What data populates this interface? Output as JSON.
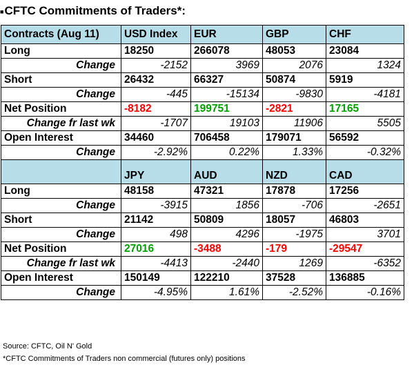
{
  "title": "CFTC Commitments of Traders*:",
  "title_mark": "■",
  "top": {
    "header_label": "Contracts (Aug 11)",
    "currencies": [
      "USD Index",
      "EUR",
      "GBP",
      "CHF"
    ],
    "rows": [
      {
        "label": "Long",
        "kind": "main",
        "values": [
          "18250",
          "266078",
          "48053",
          "23084"
        ]
      },
      {
        "label": "Change",
        "kind": "sub",
        "values": [
          "-2152",
          "3969",
          "2076",
          "1324"
        ]
      },
      {
        "label": "Short",
        "kind": "main",
        "values": [
          "26432",
          "66327",
          "50874",
          "5919"
        ]
      },
      {
        "label": "Change",
        "kind": "sub",
        "values": [
          "-445",
          "-15134",
          "-9830",
          "-4181"
        ]
      },
      {
        "label": "Net Position",
        "kind": "net",
        "values": [
          "-8182",
          "199751",
          "-2821",
          "17165"
        ]
      },
      {
        "label": "Change fr last wk",
        "kind": "sub",
        "values": [
          "-1707",
          "19103",
          "11906",
          "5505"
        ]
      },
      {
        "label": "Open Interest",
        "kind": "main",
        "values": [
          "34460",
          "706458",
          "179071",
          "56592"
        ]
      },
      {
        "label": "Change",
        "kind": "sub",
        "values": [
          "-2.92%",
          "0.22%",
          "1.33%",
          "-0.32%"
        ]
      }
    ]
  },
  "bottom": {
    "header_label": "",
    "currencies": [
      "JPY",
      "AUD",
      "NZD",
      "CAD"
    ],
    "rows": [
      {
        "label": "Long",
        "kind": "main",
        "values": [
          "48158",
          "47321",
          "17878",
          "17256"
        ]
      },
      {
        "label": "Change",
        "kind": "sub",
        "values": [
          "-3915",
          "1856",
          "-706",
          "-2651"
        ]
      },
      {
        "label": "Short",
        "kind": "main",
        "values": [
          "21142",
          "50809",
          "18057",
          "46803"
        ]
      },
      {
        "label": "Change",
        "kind": "sub",
        "values": [
          "498",
          "4296",
          "-1975",
          "3701"
        ]
      },
      {
        "label": "Net Position",
        "kind": "net",
        "values": [
          "27016",
          "-3488",
          "-179",
          "-29547"
        ]
      },
      {
        "label": "Change fr last wk",
        "kind": "sub",
        "values": [
          "-4413",
          "-2440",
          "1269",
          "-6352"
        ]
      },
      {
        "label": "Open Interest",
        "kind": "main",
        "values": [
          "150149",
          "122210",
          "37528",
          "136885"
        ]
      },
      {
        "label": "Change",
        "kind": "sub",
        "values": [
          "-4.95%",
          "1.61%",
          "-2.52%",
          "-0.16%"
        ]
      }
    ]
  },
  "colors": {
    "header_bg": "#b7dde8",
    "negative": "#ff0000",
    "positive": "#00a000"
  },
  "footer": {
    "source": "Source: CFTC, Oil N' Gold",
    "note": "*CFTC Commitments of Traders non commercial (futures only) positions"
  }
}
